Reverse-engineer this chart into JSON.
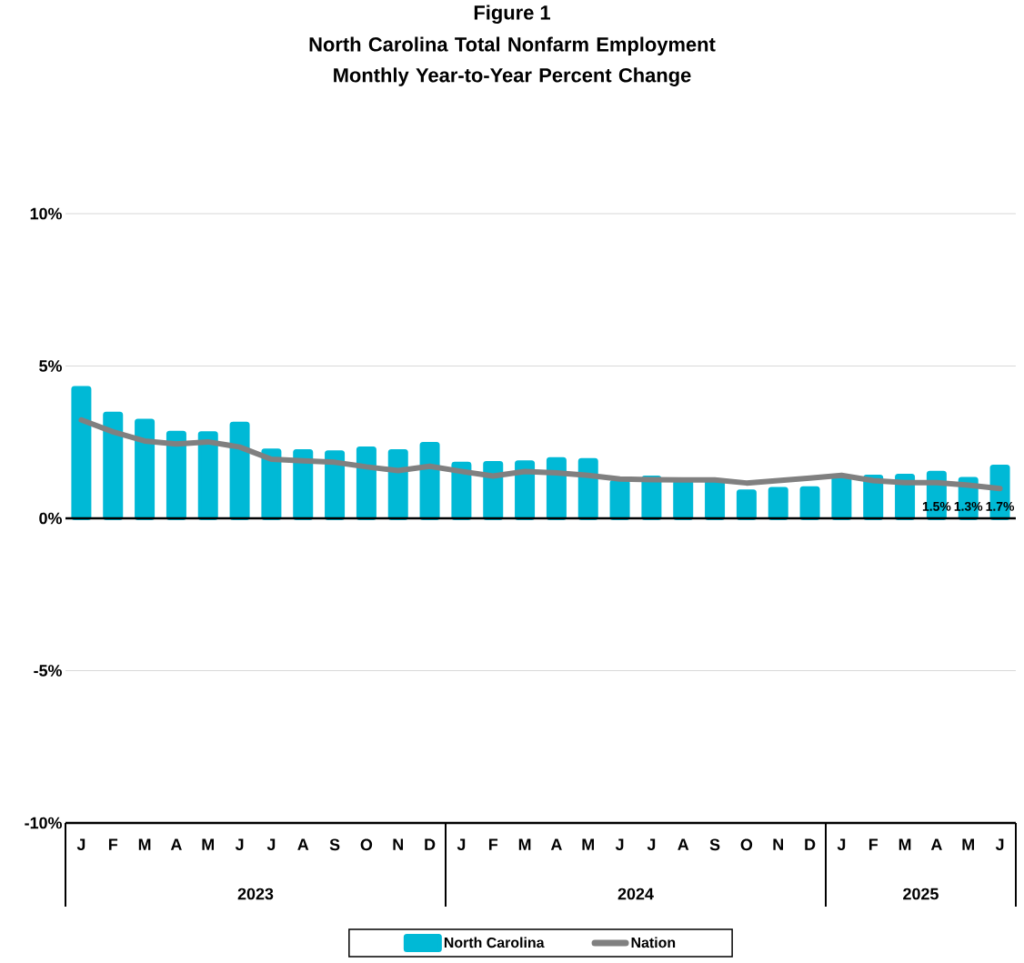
{
  "chart_data": {
    "type": "bar",
    "title": "Figure 1",
    "subtitle": "North Carolina Total Nonfarm Employment Monthly Year-to-Year Percent Change",
    "categories": [
      "J",
      "F",
      "M",
      "A",
      "M",
      "J",
      "J",
      "A",
      "S",
      "O",
      "N",
      "D",
      "J",
      "F",
      "M",
      "A",
      "M",
      "J",
      "J",
      "A",
      "S",
      "O",
      "N",
      "D",
      "J",
      "F",
      "M",
      "A",
      "M",
      "J"
    ],
    "series": [
      {
        "name": "North Carolina",
        "color": "#00b9d6",
        "values": [
          4.28,
          3.44,
          3.21,
          2.81,
          2.8,
          3.11,
          2.23,
          2.21,
          2.17,
          2.3,
          2.21,
          2.45,
          1.8,
          1.82,
          1.84,
          1.95,
          1.92,
          1.2,
          1.34,
          1.2,
          1.2,
          0.89,
          0.97,
          0.99,
          1.37,
          1.37,
          1.4,
          1.5,
          1.3,
          1.7
        ],
        "value_labels": [
          null,
          null,
          null,
          null,
          null,
          null,
          null,
          null,
          null,
          null,
          null,
          null,
          null,
          null,
          null,
          null,
          null,
          null,
          null,
          null,
          null,
          null,
          null,
          null,
          null,
          null,
          null,
          "1.5%",
          "1.3%",
          "1.7%"
        ]
      },
      {
        "name": "Nation",
        "type": "line",
        "color": "#808080",
        "values": [
          3.23,
          2.84,
          2.54,
          2.44,
          2.51,
          2.34,
          1.94,
          1.89,
          1.84,
          1.69,
          1.57,
          1.71,
          1.54,
          1.39,
          1.54,
          1.49,
          1.41,
          1.29,
          1.27,
          1.26,
          1.26,
          1.16,
          1.24,
          1.32,
          1.41,
          1.24,
          1.17,
          1.17,
          1.09,
          0.98
        ]
      }
    ],
    "ylim": [
      -10,
      10
    ],
    "yticks": [
      {
        "value": -10,
        "label": "-10%"
      },
      {
        "value": -5,
        "label": "-5%"
      },
      {
        "value": 0,
        "label": "0%"
      },
      {
        "value": 5,
        "label": "5%"
      },
      {
        "value": 10,
        "label": "10%"
      }
    ],
    "grid": "y",
    "legend": "bottom",
    "annotations": [
      "2023",
      "2024",
      "2025"
    ]
  }
}
